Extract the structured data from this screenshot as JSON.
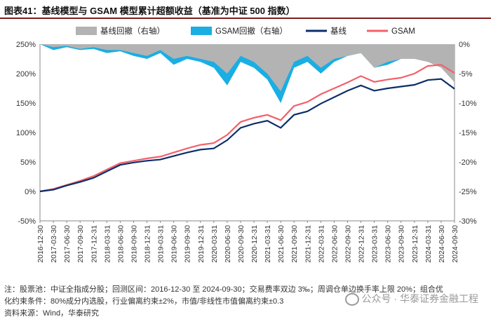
{
  "header": {
    "label": "图表41：",
    "title": "基线模型与 GSAM 模型累计超额收益（基准为中证 500 指数）"
  },
  "chart_data": {
    "type": "line+area",
    "title": "基线模型与 GSAM 模型累计超额收益（基准为中证 500 指数）",
    "legend": [
      "基线回撤（右轴）",
      "GSAM回撤（右轴）",
      "基线",
      "GSAM"
    ],
    "colors": {
      "base_dd": "#b3b3b3",
      "gsam_dd": "#19aee4",
      "base": "#0b2e6b",
      "gsam": "#f4606a"
    },
    "left_axis": {
      "min": -50,
      "max": 250,
      "ticks": [
        "-50%",
        "0%",
        "50%",
        "100%",
        "150%",
        "200%",
        "250%"
      ]
    },
    "right_axis": {
      "min": -30,
      "max": 0,
      "ticks": [
        "-30%",
        "-25%",
        "-20%",
        "-15%",
        "-10%",
        "-5%",
        "0%"
      ]
    },
    "x_ticks": [
      "2016-12-30",
      "2017-03-30",
      "2017-06-30",
      "2017-09-30",
      "2017-12-31",
      "2018-03-31",
      "2018-06-30",
      "2018-09-30",
      "2018-12-31",
      "2019-03-31",
      "2019-06-30",
      "2019-09-30",
      "2019-12-31",
      "2020-03-31",
      "2020-06-30",
      "2020-09-30",
      "2020-12-31",
      "2021-03-31",
      "2021-06-30",
      "2021-09-30",
      "2021-12-31",
      "2022-03-31",
      "2022-06-30",
      "2022-09-30",
      "2022-12-31",
      "2023-03-31",
      "2023-06-30",
      "2023-09-30",
      "2023-12-31",
      "2024-03-31",
      "2024-06-30",
      "2024-09-30"
    ],
    "gsam": [
      0,
      4,
      11,
      18,
      26,
      37,
      48,
      52,
      56,
      59,
      66,
      73,
      79,
      82,
      96,
      118,
      125,
      130,
      121,
      145,
      152,
      165,
      175,
      185,
      196,
      186,
      190,
      193,
      200,
      213,
      215,
      201
    ],
    "base": [
      0,
      3,
      10,
      16,
      23,
      34,
      45,
      49,
      52,
      54,
      60,
      66,
      71,
      73,
      87,
      108,
      115,
      120,
      108,
      130,
      136,
      149,
      160,
      171,
      180,
      171,
      175,
      178,
      181,
      189,
      191,
      174
    ],
    "gsam_drawdown": [
      0,
      -1,
      -0.5,
      -1,
      -0.8,
      -1.5,
      -1.2,
      -2,
      -2.5,
      -1.5,
      -3.5,
      -2.5,
      -3,
      -4,
      -7,
      -3,
      -4,
      -6,
      -10,
      -4,
      -3,
      -5,
      -3,
      -2,
      -1.5,
      -4,
      -3.5,
      -2.5,
      -2,
      -3,
      -3.5,
      -5
    ],
    "base_drawdown": [
      0,
      -0.5,
      -0.3,
      -0.8,
      -0.5,
      -1,
      -1,
      -1.5,
      -2,
      -1,
      -2.5,
      -2,
      -2.5,
      -3,
      -5,
      -2,
      -3,
      -5,
      -8,
      -3,
      -2,
      -4,
      -2.5,
      -2,
      -1.5,
      -4,
      -3,
      -2.5,
      -2.5,
      -3,
      -4,
      -6.5
    ]
  },
  "notes": {
    "line1": "注：股票池：中证全指成分股；回测区间：2016-12-30 至 2024-09-30；交易费率双边 3‰；周调仓单边换手率上限 20%；组合优",
    "line2": "化约束条件：80%成分内选股，行业偏离约束±2%，市值/非线性市值偏离约束±0.3",
    "line3": "资料来源：Wind，华泰研究"
  },
  "watermark": "公众号 · 华泰证券金融工程"
}
